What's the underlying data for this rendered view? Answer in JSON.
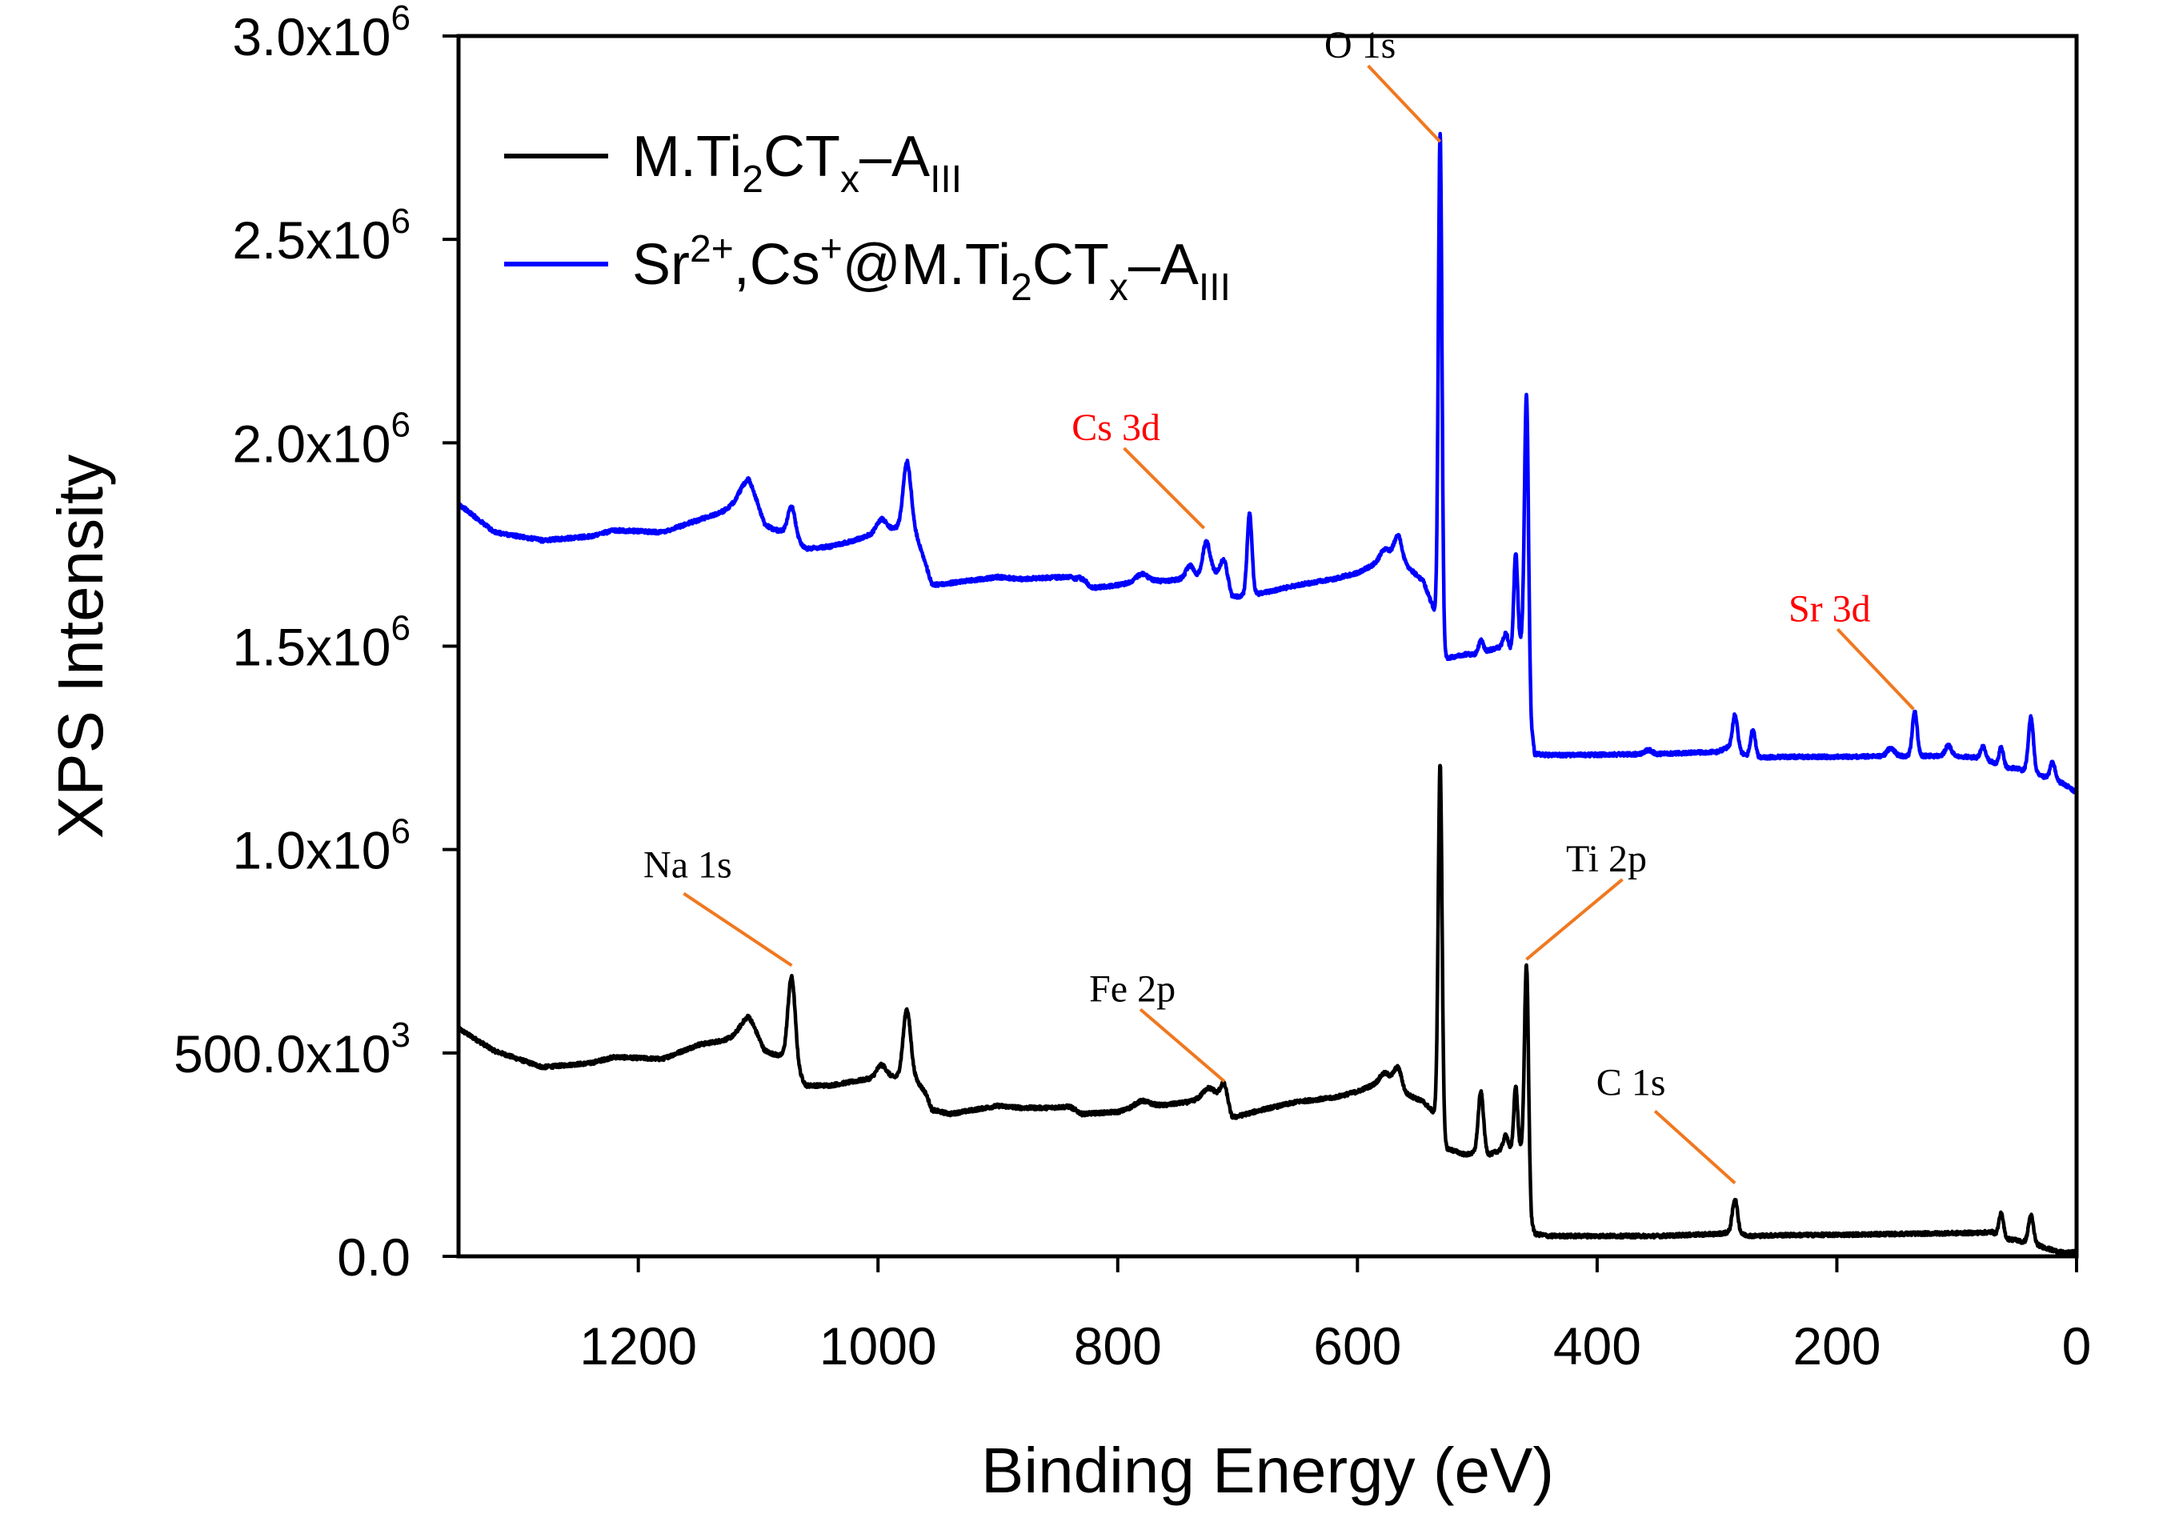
{
  "chart_data": {
    "type": "line",
    "xlabel": "Binding Energy (eV)",
    "ylabel": "XPS Intensity",
    "xlim": [
      1350,
      0
    ],
    "ylim": [
      0,
      3000000
    ],
    "x_ticks": [
      1200,
      1000,
      800,
      600,
      400,
      200,
      0
    ],
    "x_tick_labels": [
      "1200",
      "1000",
      "800",
      "600",
      "400",
      "200",
      "0"
    ],
    "y_ticks": [
      0,
      500000,
      1000000,
      1500000,
      2000000,
      2500000,
      3000000
    ],
    "y_tick_labels": [
      {
        "base": "0.0",
        "exp": ""
      },
      {
        "base": "500.0x10",
        "exp": "3"
      },
      {
        "base": "1.0x10",
        "exp": "6"
      },
      {
        "base": "1.5x10",
        "exp": "6"
      },
      {
        "base": "2.0x10",
        "exp": "6"
      },
      {
        "base": "2.5x10",
        "exp": "6"
      },
      {
        "base": "3.0x10",
        "exp": "6"
      }
    ],
    "legend_position": "top-left",
    "series": [
      {
        "name": "M.Ti2CTx-AIII",
        "legend": [
          {
            "t": "M.Ti",
            "s": ""
          },
          {
            "t": "2",
            "s": "sub"
          },
          {
            "t": "CT",
            "s": ""
          },
          {
            "t": "x",
            "s": "sub"
          },
          {
            "t": "–A",
            "s": ""
          },
          {
            "t": "III",
            "s": "sub"
          }
        ],
        "color": "#000000",
        "baseline": [
          [
            1350,
            560000
          ],
          [
            1320,
            505000
          ],
          [
            1280,
            465000
          ],
          [
            1240,
            475000
          ],
          [
            1220,
            490000
          ],
          [
            1180,
            485000
          ],
          [
            1150,
            520000
          ],
          [
            1120,
            535000
          ],
          [
            1108,
            560000
          ],
          [
            1095,
            500000
          ],
          [
            1075,
            490000
          ],
          [
            1060,
            420000
          ],
          [
            1040,
            420000
          ],
          [
            1020,
            430000
          ],
          [
            1000,
            440000
          ],
          [
            985,
            440000
          ],
          [
            972,
            450000
          ],
          [
            960,
            400000
          ],
          [
            955,
            360000
          ],
          [
            940,
            350000
          ],
          [
            900,
            370000
          ],
          [
            880,
            365000
          ],
          [
            860,
            365000
          ],
          [
            840,
            368000
          ],
          [
            830,
            350000
          ],
          [
            800,
            355000
          ],
          [
            780,
            370000
          ],
          [
            760,
            372000
          ],
          [
            740,
            380000
          ],
          [
            720,
            400000
          ],
          [
            712,
            390000
          ],
          [
            705,
            340000
          ],
          [
            680,
            360000
          ],
          [
            650,
            380000
          ],
          [
            620,
            390000
          ],
          [
            600,
            405000
          ],
          [
            580,
            430000
          ],
          [
            570,
            430000
          ],
          [
            560,
            400000
          ],
          [
            545,
            380000
          ],
          [
            535,
            350000
          ],
          [
            531,
            290000
          ],
          [
            525,
            265000
          ],
          [
            510,
            250000
          ],
          [
            500,
            255000
          ],
          [
            490,
            250000
          ],
          [
            478,
            265000
          ],
          [
            470,
            255000
          ],
          [
            462,
            270000
          ],
          [
            458,
            250000
          ],
          [
            455,
            90000
          ],
          [
            452,
            55000
          ],
          [
            440,
            50000
          ],
          [
            400,
            50000
          ],
          [
            350,
            50000
          ],
          [
            300,
            55000
          ],
          [
            292,
            58000
          ],
          [
            270,
            50000
          ],
          [
            250,
            52000
          ],
          [
            200,
            53000
          ],
          [
            150,
            55000
          ],
          [
            100,
            57000
          ],
          [
            80,
            58000
          ],
          [
            70,
            60000
          ],
          [
            65,
            45000
          ],
          [
            50,
            40000
          ],
          [
            45,
            35000
          ],
          [
            40,
            38000
          ],
          [
            30,
            25000
          ],
          [
            20,
            15000
          ],
          [
            10,
            8000
          ],
          [
            0,
            10000
          ]
        ],
        "peaks": [
          [
            1108,
            30000,
            8
          ],
          [
            1072,
            210000,
            3
          ],
          [
            997,
            30000,
            4
          ],
          [
            976,
            160000,
            3
          ],
          [
            780,
            12000,
            6
          ],
          [
            725,
            18000,
            4
          ],
          [
            711,
            40000,
            3
          ],
          [
            577,
            20000,
            4
          ],
          [
            566,
            45000,
            3
          ],
          [
            531,
            920000,
            1.6
          ],
          [
            497,
            150000,
            2.2
          ],
          [
            476,
            35000,
            2
          ],
          [
            468,
            160000,
            1.6
          ],
          [
            459,
            460000,
            1.6
          ],
          [
            285,
            85000,
            2.2
          ],
          [
            63,
            60000,
            2
          ],
          [
            38,
            65000,
            2
          ]
        ]
      },
      {
        "name": "Sr2+,Cs+@M.Ti2CTx-AIII",
        "legend": [
          {
            "t": "Sr",
            "s": ""
          },
          {
            "t": "2+",
            "s": "sup"
          },
          {
            "t": ",Cs",
            "s": ""
          },
          {
            "t": "+",
            "s": "sup"
          },
          {
            "t": "@M.Ti",
            "s": ""
          },
          {
            "t": "2",
            "s": "sub"
          },
          {
            "t": "CT",
            "s": ""
          },
          {
            "t": "x",
            "s": "sub"
          },
          {
            "t": "–A",
            "s": ""
          },
          {
            "t": "III",
            "s": "sub"
          }
        ],
        "color": "#0000ff",
        "baseline": [
          [
            1350,
            1850000
          ],
          [
            1320,
            1780000
          ],
          [
            1280,
            1760000
          ],
          [
            1240,
            1770000
          ],
          [
            1220,
            1785000
          ],
          [
            1180,
            1780000
          ],
          [
            1150,
            1810000
          ],
          [
            1120,
            1840000
          ],
          [
            1108,
            1860000
          ],
          [
            1095,
            1790000
          ],
          [
            1075,
            1780000
          ],
          [
            1060,
            1740000
          ],
          [
            1040,
            1745000
          ],
          [
            1020,
            1760000
          ],
          [
            1000,
            1780000
          ],
          [
            985,
            1790000
          ],
          [
            972,
            1810000
          ],
          [
            960,
            1700000
          ],
          [
            955,
            1650000
          ],
          [
            940,
            1655000
          ],
          [
            900,
            1670000
          ],
          [
            880,
            1665000
          ],
          [
            860,
            1668000
          ],
          [
            840,
            1670000
          ],
          [
            830,
            1640000
          ],
          [
            800,
            1650000
          ],
          [
            780,
            1662000
          ],
          [
            760,
            1660000
          ],
          [
            740,
            1668000
          ],
          [
            720,
            1680000
          ],
          [
            712,
            1672000
          ],
          [
            705,
            1620000
          ],
          [
            680,
            1630000
          ],
          [
            650,
            1650000
          ],
          [
            620,
            1665000
          ],
          [
            600,
            1680000
          ],
          [
            580,
            1710000
          ],
          [
            570,
            1720000
          ],
          [
            560,
            1700000
          ],
          [
            545,
            1660000
          ],
          [
            535,
            1580000
          ],
          [
            531,
            1490000
          ],
          [
            525,
            1470000
          ],
          [
            510,
            1480000
          ],
          [
            500,
            1480000
          ],
          [
            490,
            1490000
          ],
          [
            478,
            1500000
          ],
          [
            470,
            1480000
          ],
          [
            462,
            1520000
          ],
          [
            458,
            1500000
          ],
          [
            455,
            1300000
          ],
          [
            452,
            1235000
          ],
          [
            440,
            1232000
          ],
          [
            400,
            1233000
          ],
          [
            350,
            1235000
          ],
          [
            300,
            1240000
          ],
          [
            292,
            1250000
          ],
          [
            270,
            1225000
          ],
          [
            250,
            1228000
          ],
          [
            200,
            1228000
          ],
          [
            150,
            1230000
          ],
          [
            100,
            1230000
          ],
          [
            80,
            1225000
          ],
          [
            70,
            1215000
          ],
          [
            65,
            1200000
          ],
          [
            50,
            1200000
          ],
          [
            45,
            1195000
          ],
          [
            40,
            1200000
          ],
          [
            30,
            1180000
          ],
          [
            20,
            1175000
          ],
          [
            10,
            1160000
          ],
          [
            0,
            1140000
          ]
        ],
        "peaks": [
          [
            1108,
            50000,
            8
          ],
          [
            1072,
            70000,
            3
          ],
          [
            997,
            30000,
            4
          ],
          [
            976,
            150000,
            3
          ],
          [
            830,
            25000,
            4
          ],
          [
            780,
            15000,
            5
          ],
          [
            740,
            30000,
            3
          ],
          [
            726,
            80000,
            3
          ],
          [
            711,
            45000,
            3
          ],
          [
            690,
            200000,
            2
          ],
          [
            577,
            25000,
            4
          ],
          [
            566,
            60000,
            3
          ],
          [
            531,
            1270000,
            1.5
          ],
          [
            497,
            30000,
            2
          ],
          [
            476,
            35000,
            2
          ],
          [
            468,
            240000,
            1.6
          ],
          [
            459,
            610000,
            1.6
          ],
          [
            357,
            10000,
            3
          ],
          [
            285,
            90000,
            2.2
          ],
          [
            270,
            70000,
            2
          ],
          [
            155,
            20000,
            3
          ],
          [
            135,
            110000,
            2
          ],
          [
            107,
            25000,
            2.5
          ],
          [
            78,
            30000,
            2
          ],
          [
            63,
            50000,
            2
          ],
          [
            38,
            130000,
            2
          ],
          [
            20,
            40000,
            2
          ]
        ]
      }
    ],
    "annotations": [
      {
        "label": "O 1s",
        "color": "#000000",
        "x": 531,
        "y": 2740000
      },
      {
        "label": "Cs 3d",
        "color": "#ff0000",
        "x": 728,
        "y": 1790000
      },
      {
        "label": "Sr 3d",
        "color": "#ff0000",
        "x": 136,
        "y": 1345000
      },
      {
        "label": "Na 1s",
        "color": "#000000",
        "x": 1072,
        "y": 715000
      },
      {
        "label": "Ti 2p",
        "color": "#000000",
        "x": 459,
        "y": 730000
      },
      {
        "label": "Fe 2p",
        "color": "#000000",
        "x": 711,
        "y": 430000
      },
      {
        "label": "C 1s",
        "color": "#000000",
        "x": 285,
        "y": 180000
      }
    ],
    "leader_color": "#f07820"
  }
}
